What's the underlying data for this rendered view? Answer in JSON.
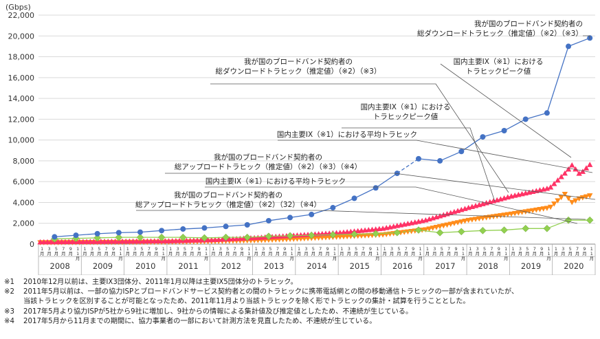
{
  "chart_data": {
    "type": "line",
    "unit": "(Gbps)",
    "ylim": [
      0,
      22000
    ],
    "yticks": [
      0,
      2000,
      4000,
      6000,
      8000,
      10000,
      12000,
      14000,
      16000,
      18000,
      20000,
      22000
    ],
    "ytick_labels": [
      "0",
      "2,000",
      "4,000",
      "6,000",
      "8,000",
      "10,000",
      "12,000",
      "14,000",
      "16,000",
      "18,000",
      "20,000",
      "22,000"
    ],
    "grid": true,
    "years": [
      "2008",
      "2009",
      "2010",
      "2011",
      "2012",
      "2013",
      "2014",
      "2015",
      "2016",
      "2017",
      "2018",
      "2019",
      "2020"
    ],
    "month_labels": [
      "1月",
      "3月",
      "5月",
      "7月",
      "9月",
      "11月"
    ],
    "series": [
      {
        "name": "我が国のブロードバンド契約者の総ダウンロードトラヒック（推定値）（※2）（※3）",
        "color": "#4472c4",
        "marker": "circle",
        "points": [
          [
            2008.375,
            700
          ],
          [
            2008.875,
            850
          ],
          [
            2009.375,
            1000
          ],
          [
            2009.875,
            1100
          ],
          [
            2010.375,
            1150
          ],
          [
            2010.875,
            1300
          ],
          [
            2011.375,
            1450
          ],
          [
            2011.875,
            1550
          ],
          [
            2012.375,
            1700
          ],
          [
            2012.875,
            1850
          ],
          [
            2013.375,
            2250
          ],
          [
            2013.875,
            2550
          ],
          [
            2014.375,
            2850
          ],
          [
            2014.875,
            3500
          ],
          [
            2015.375,
            4400
          ],
          [
            2015.875,
            5400
          ],
          [
            2016.375,
            6800
          ],
          [
            2016.875,
            8200
          ],
          [
            2017.375,
            8000
          ],
          [
            2017.875,
            8900
          ],
          [
            2018.375,
            10300
          ],
          [
            2018.875,
            10900
          ],
          [
            2019.375,
            12000
          ],
          [
            2019.875,
            12600
          ],
          [
            2020.375,
            19000
          ],
          [
            2020.875,
            19800
          ]
        ],
        "dashed_segments": [
          [
            16,
            17
          ]
        ]
      },
      {
        "name": "国内主要IX（※1）におけるトラヒックピーク値",
        "color": "#ff3366",
        "marker": "triangle-up",
        "start": 2008.0,
        "end": 2020.875,
        "values_at": [
          [
            2008.0,
            200
          ],
          [
            2011.0,
            300
          ],
          [
            2012.0,
            400
          ],
          [
            2013.0,
            600
          ],
          [
            2014.0,
            850
          ],
          [
            2015.0,
            1100
          ],
          [
            2016.0,
            1500
          ],
          [
            2017.0,
            2300
          ],
          [
            2018.0,
            3500
          ],
          [
            2019.0,
            4600
          ],
          [
            2019.9,
            5400
          ],
          [
            2020.25,
            6800
          ],
          [
            2020.42,
            7600
          ],
          [
            2020.6,
            6700
          ],
          [
            2020.875,
            7800
          ]
        ]
      },
      {
        "name": "国内主要IX（※1）における平均トラヒック",
        "color": "#ff8c1a",
        "marker": "triangle-down",
        "start": 2008.0,
        "end": 2020.875,
        "values_at": [
          [
            2008.0,
            150
          ],
          [
            2011.0,
            200
          ],
          [
            2012.0,
            250
          ],
          [
            2013.0,
            350
          ],
          [
            2014.0,
            500
          ],
          [
            2015.0,
            700
          ],
          [
            2016.0,
            900
          ],
          [
            2017.0,
            1400
          ],
          [
            2018.0,
            2300
          ],
          [
            2019.0,
            2900
          ],
          [
            2019.9,
            3500
          ],
          [
            2020.25,
            4800
          ],
          [
            2020.42,
            4000
          ],
          [
            2020.6,
            4400
          ],
          [
            2020.875,
            4700
          ]
        ]
      },
      {
        "name": "我が国のブロードバンド契約者の総アップロードトラヒック（推定値）（※2）（※3）（※4）",
        "color": "#92d050",
        "marker": "diamond",
        "points": [
          [
            2008.375,
            500
          ],
          [
            2008.875,
            550
          ],
          [
            2009.375,
            600
          ],
          [
            2009.875,
            650
          ],
          [
            2010.375,
            650
          ],
          [
            2010.875,
            650
          ],
          [
            2011.375,
            650
          ],
          [
            2011.875,
            600
          ],
          [
            2012.375,
            650
          ],
          [
            2012.875,
            650
          ],
          [
            2013.375,
            750
          ],
          [
            2013.875,
            800
          ],
          [
            2014.375,
            850
          ],
          [
            2014.875,
            900
          ],
          [
            2015.375,
            950
          ],
          [
            2015.875,
            1000
          ],
          [
            2016.375,
            1100
          ],
          [
            2016.875,
            1350
          ],
          [
            2017.375,
            1100
          ],
          [
            2017.875,
            1200
          ],
          [
            2018.375,
            1300
          ],
          [
            2018.875,
            1350
          ],
          [
            2019.375,
            1500
          ],
          [
            2019.875,
            1500
          ],
          [
            2020.375,
            2300
          ],
          [
            2020.875,
            2300
          ]
        ],
        "dashed_segments": [
          [
            16,
            17
          ]
        ]
      }
    ],
    "annotations": [
      {
        "id": "ann1",
        "lines": [
          "我が国のブロードバンド契約者の",
          "総ダウンロードトラヒック（推定値）（※2）（※3）"
        ]
      },
      {
        "id": "ann2",
        "lines": [
          "国内主要IX（※1）における",
          "トラヒックピーク値"
        ]
      },
      {
        "id": "ann3",
        "lines": [
          "我が国のブロードバンド契約者の",
          "総ダウンロードトラヒック（推定値）（※2）（※3）"
        ]
      },
      {
        "id": "ann4",
        "lines": [
          "国内主要IX（※1）における",
          "トラヒックピーク値"
        ]
      },
      {
        "id": "ann5",
        "lines": [
          "国内主要IX（※1）における平均トラヒック"
        ]
      },
      {
        "id": "ann6",
        "lines": [
          "我が国のブロードバンド契約者の",
          "総アップロードトラヒック（推定値）（※2）（※3）（※4）"
        ]
      },
      {
        "id": "ann7",
        "lines": [
          "国内主要IX（※1）における平均トラヒック"
        ]
      },
      {
        "id": "ann8",
        "lines": [
          "我が国のブロードバンド契約者の",
          "総アップロードトラヒック（推定値）（※2）（32）（※4）"
        ]
      }
    ]
  },
  "notes": [
    {
      "mark": "※1",
      "text": "2010年12月以前は、主要IX3団体分、2011年1月以降は主要IX5団体分のトラヒック。"
    },
    {
      "mark": "※2",
      "text": "2011年5月以前は、一部の協力ISPとブロードバンドサービス契約者との間のトラヒックに携帯電話網との間の移動通信トラヒックの一部が含まれていたが、\n当該トラヒックを区別することが可能となったため、2011年11月より当該トラヒックを除く形でトラヒックの集計・試算を行うこととした。"
    },
    {
      "mark": "※3",
      "text": "2017年5月より協力ISPが5社から9社に増加し、9社からの情報による集計値及び推定値としたため、不連続が生じている。"
    },
    {
      "mark": "※4",
      "text": "2017年5月から11月までの期間に、協力事業者の一部において計測方法を見直したため、不連続が生じている。"
    }
  ]
}
